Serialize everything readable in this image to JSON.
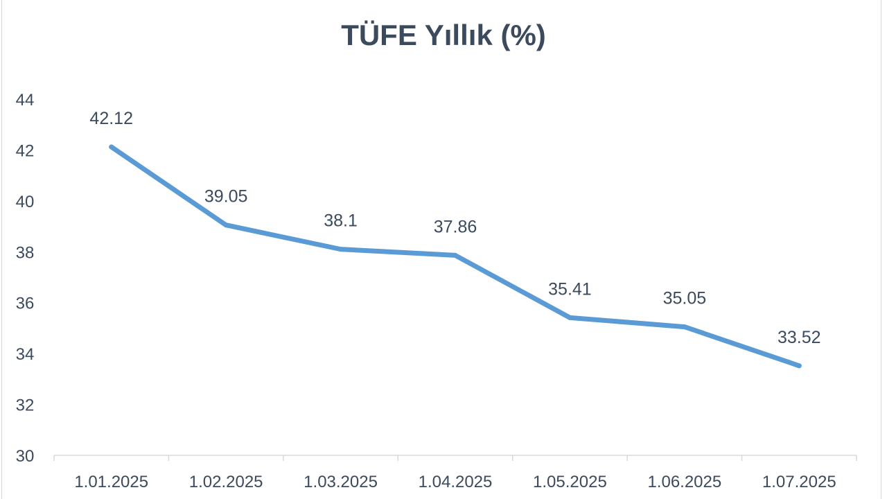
{
  "chart_data": {
    "type": "line",
    "title": "TÜFE Yıllık (%)",
    "xlabel": "",
    "ylabel": "",
    "categories": [
      "1.01.2025",
      "1.02.2025",
      "1.03.2025",
      "1.04.2025",
      "1.05.2025",
      "1.06.2025",
      "1.07.2025"
    ],
    "values": [
      42.12,
      39.05,
      38.1,
      37.86,
      35.41,
      35.05,
      33.52
    ],
    "value_labels": [
      "42.12",
      "39.05",
      "38.1",
      "37.86",
      "35.41",
      "35.05",
      "33.52"
    ],
    "ylim": [
      30,
      44
    ],
    "yticks": [
      "30",
      "32",
      "34",
      "36",
      "38",
      "40",
      "42",
      "44"
    ],
    "grid": false,
    "legend": "none",
    "line_color": "#5b9bd5",
    "text_color": "#3b4a5c",
    "axis_color": "#d9d9d9"
  }
}
